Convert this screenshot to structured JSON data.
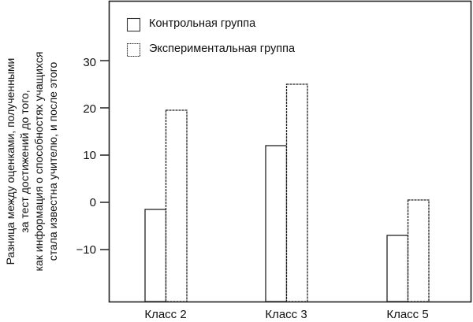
{
  "chart_data": {
    "type": "bar",
    "title": "",
    "xlabel": "",
    "ylabel": "Разница между оценками, полученными\nза тест достижений до того,\nкак информация о способностях учащихся\nстала известна учителю, и после этого",
    "categories": [
      "Класс 2",
      "Класс 3",
      "Класс 5"
    ],
    "series": [
      {
        "name": "Контрольная группа",
        "values": [
          -1.5,
          12,
          -7
        ]
      },
      {
        "name": "Экспериментальная группа",
        "values": [
          19.5,
          25,
          0.5
        ]
      }
    ],
    "yticks": [
      30,
      20,
      10,
      0,
      -10
    ],
    "ytick_labels": [
      "30",
      "20",
      "10",
      "0",
      "−10"
    ],
    "ylim": [
      -21,
      42
    ],
    "grid": false,
    "legend_position": "upper-left inside",
    "bar_fill": "#ffffff",
    "bar_stroke": "#222222"
  },
  "legend": {
    "items": [
      {
        "label": "Контрольная группа"
      },
      {
        "label": "Экспериментальная группа"
      }
    ]
  },
  "axis": {
    "ytick_labels": [
      "30",
      "20",
      "10",
      "0",
      "−10"
    ],
    "xtick_labels": [
      "Класс 2",
      "Класс 3",
      "Класс 5"
    ]
  }
}
